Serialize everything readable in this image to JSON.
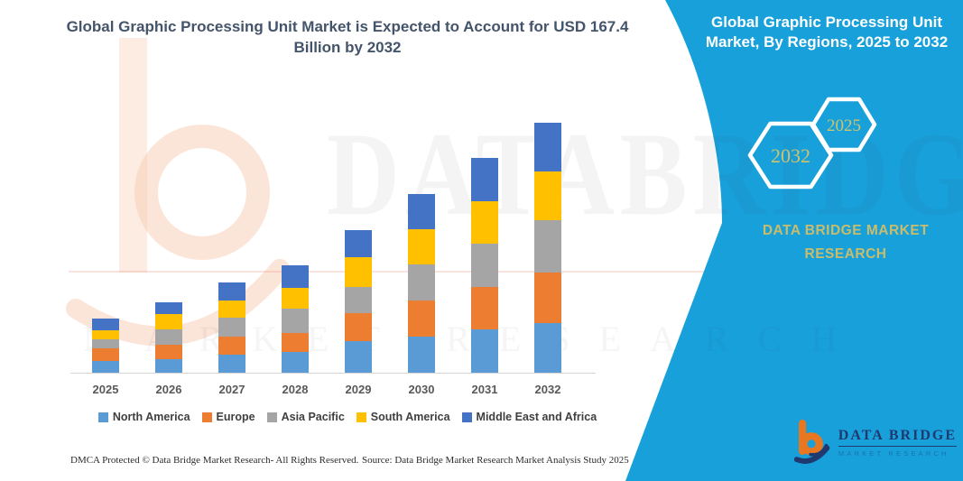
{
  "main_title": {
    "line1": "Global Graphic Processing Unit Market is Expected to Account for USD 167.4",
    "line2": "Billion by 2032"
  },
  "side_panel": {
    "title_line1": "Global Graphic Processing Unit",
    "title_line2": "Market, By Regions, 2025 to 2032",
    "hexagons": [
      {
        "label": "2032"
      },
      {
        "label": "2025"
      }
    ],
    "brand_line1": "DATA BRIDGE MARKET",
    "brand_line2": "RESEARCH",
    "colors": {
      "background": "#18A0DB",
      "accent_text": "#C9BC6B",
      "title_text": "#FFFFFF"
    }
  },
  "chart_data": {
    "type": "bar",
    "stacked": true,
    "unit": "USD Billion",
    "categories": [
      "2025",
      "2026",
      "2027",
      "2028",
      "2029",
      "2030",
      "2031",
      "2032"
    ],
    "series": [
      {
        "name": "North America",
        "color": "#5B9BD5",
        "values": [
          7.8,
          8.9,
          11.9,
          13.9,
          20.9,
          23.9,
          29.0,
          33.0
        ]
      },
      {
        "name": "Europe",
        "color": "#ED7D31",
        "values": [
          8.6,
          9.7,
          12.1,
          13.0,
          18.7,
          24.5,
          28.2,
          34.1
        ]
      },
      {
        "name": "Asia Pacific",
        "color": "#A5A5A5",
        "values": [
          5.9,
          10.4,
          13.0,
          16.0,
          17.5,
          23.9,
          29.1,
          35.2
        ]
      },
      {
        "name": "South America",
        "color": "#FFC000",
        "values": [
          6.2,
          10.4,
          11.1,
          14.2,
          20.1,
          23.9,
          28.5,
          32.2
        ]
      },
      {
        "name": "Middle East and Africa",
        "color": "#4472C4",
        "values": [
          7.7,
          7.7,
          12.2,
          15.1,
          18.4,
          23.1,
          28.8,
          32.9
        ]
      }
    ],
    "totals": [
      36.2,
      47.1,
      60.3,
      72.2,
      95.6,
      119.3,
      143.6,
      167.4
    ],
    "xlabel": "",
    "ylabel": "",
    "grid": false,
    "legend_position": "bottom"
  },
  "footer": {
    "left": "DMCA Protected © Data Bridge Market Research-  All Rights Reserved.",
    "right": "Source: Data Bridge Market Research  Market Analysis Study 2025"
  },
  "logo": {
    "name": "DATA BRIDGE",
    "subname": "MARKET RESEARCH"
  },
  "watermark": {
    "big_text": "DATABRIDGE",
    "sub_text": "MARKET RESEARCH"
  }
}
